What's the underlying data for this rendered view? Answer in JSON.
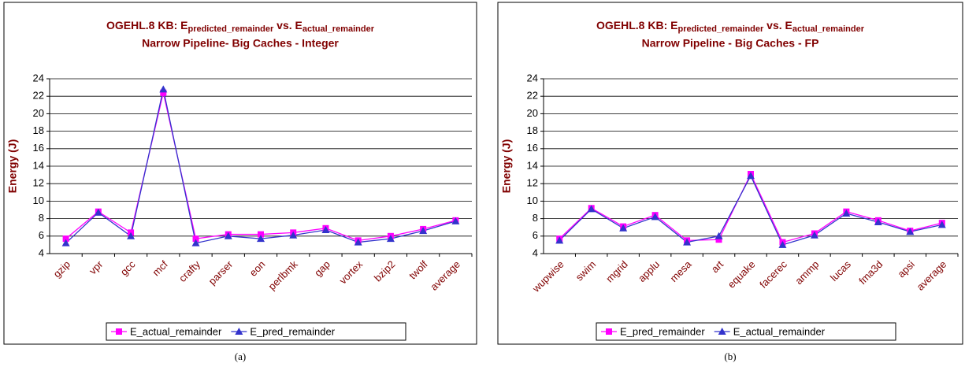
{
  "chart_data": [
    {
      "type": "line",
      "title": [
        "OGEHL.8 KB: E",
        "predicted_remainder",
        " vs. E",
        "actual_remainder"
      ],
      "subtitle": "Narrow Pipeline- Big Caches - Integer",
      "y_label": "Energy (J)",
      "caption": "(a)",
      "categories": [
        "gzip",
        "vpr",
        "gcc",
        "mcf",
        "crafty",
        "parser",
        "eon",
        "perlbmk",
        "gap",
        "vortex",
        "bzip2",
        "twolf",
        "average"
      ],
      "series": [
        {
          "name": "E_actual_remainder",
          "color": "#ff00ff",
          "marker": "square",
          "values": [
            5.7,
            8.8,
            6.4,
            22.4,
            5.7,
            6.2,
            6.2,
            6.4,
            6.9,
            5.5,
            6.0,
            6.8,
            7.8
          ]
        },
        {
          "name": "E_pred_remainder",
          "color": "#3333cc",
          "marker": "triangle",
          "values": [
            5.2,
            8.7,
            6.0,
            22.8,
            5.2,
            6.0,
            5.7,
            6.1,
            6.7,
            5.3,
            5.7,
            6.6,
            7.7
          ]
        }
      ],
      "ylim": [
        4,
        24
      ],
      "yticks": [
        4,
        6,
        8,
        10,
        12,
        14,
        16,
        18,
        20,
        22,
        24
      ],
      "grid": true
    },
    {
      "type": "line",
      "title": [
        "OGEHL.8 KB: E",
        "predicted_remainder",
        " vs. E",
        "actual_remainder"
      ],
      "subtitle": "Narrow Pipeline - Big Caches - FP",
      "y_label": "Energy (J)",
      "caption": "(b)",
      "categories": [
        "wupwise",
        "swim",
        "mgrid",
        "applu",
        "mesa",
        "art",
        "equake",
        "facerec",
        "ammp",
        "lucas",
        "fma3d",
        "apsi",
        "average"
      ],
      "series": [
        {
          "name": "E_pred_remainder",
          "color": "#ff00ff",
          "marker": "square",
          "values": [
            5.7,
            9.2,
            7.1,
            8.4,
            5.5,
            5.6,
            13.1,
            5.3,
            6.3,
            8.8,
            7.8,
            6.6,
            7.5
          ]
        },
        {
          "name": "E_actual_remainder",
          "color": "#3333cc",
          "marker": "triangle",
          "values": [
            5.5,
            9.1,
            6.9,
            8.2,
            5.3,
            6.0,
            12.9,
            5.0,
            6.1,
            8.6,
            7.6,
            6.5,
            7.3
          ]
        }
      ],
      "ylim": [
        4,
        24
      ],
      "yticks": [
        4,
        6,
        8,
        10,
        12,
        14,
        16,
        18,
        20,
        22,
        24
      ],
      "grid": true
    }
  ]
}
